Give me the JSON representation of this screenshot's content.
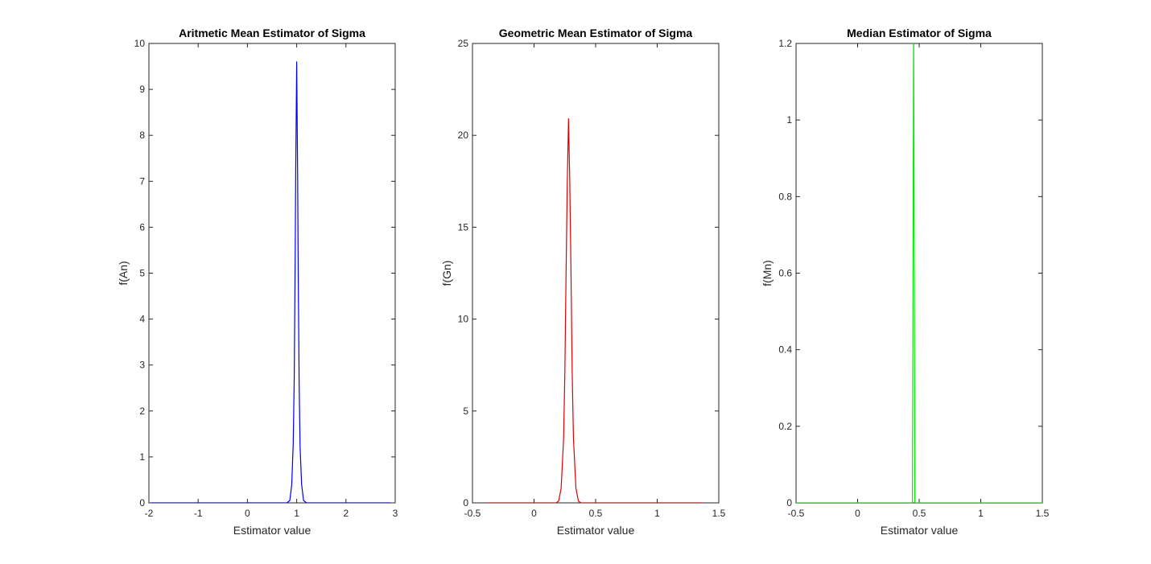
{
  "chart_data": [
    {
      "type": "line",
      "title": "Aritmetic Mean Estimator of Sigma",
      "xlabel": "Estimator value",
      "ylabel": "f(An)",
      "xlim": [
        -2,
        3
      ],
      "ylim": [
        0,
        10
      ],
      "xticks": [
        "-2",
        "-1",
        "0",
        "1",
        "2",
        "3"
      ],
      "yticks": [
        "0",
        "1",
        "2",
        "3",
        "4",
        "5",
        "6",
        "7",
        "8",
        "9",
        "10"
      ],
      "grid": false,
      "color": "#0000ff",
      "series": [
        {
          "x": [
            -1.95,
            0.8,
            0.86,
            0.9,
            0.93,
            0.95,
            0.97,
            0.98,
            1.0,
            1.02,
            1.03,
            1.05,
            1.07,
            1.1,
            1.14,
            1.2,
            2.9
          ],
          "y": [
            0,
            0,
            0.05,
            0.4,
            1.3,
            2.7,
            5.4,
            7.2,
            9.6,
            7.0,
            5.2,
            2.6,
            1.2,
            0.4,
            0.05,
            0,
            0
          ]
        }
      ]
    },
    {
      "type": "line",
      "title": "Geometric Mean Estimator of Sigma",
      "xlabel": "Estimator value",
      "ylabel": "f(Gn)",
      "xlim": [
        -0.5,
        1.5
      ],
      "ylim": [
        0,
        25
      ],
      "xticks": [
        "-0.5",
        "0",
        "0.5",
        "1",
        "1.5"
      ],
      "yticks": [
        "0",
        "5",
        "10",
        "15",
        "20",
        "25"
      ],
      "grid": false,
      "color": "#dd0000",
      "series": [
        {
          "x": [
            -0.38,
            0.18,
            0.2,
            0.22,
            0.24,
            0.25,
            0.26,
            0.27,
            0.28,
            0.29,
            0.3,
            0.31,
            0.32,
            0.34,
            0.36,
            0.38,
            1.37
          ],
          "y": [
            0,
            0,
            0.1,
            0.8,
            3.5,
            7.0,
            12.5,
            17.5,
            20.9,
            17.5,
            12.5,
            7.0,
            3.5,
            0.8,
            0.1,
            0,
            0
          ]
        }
      ]
    },
    {
      "type": "line",
      "title": "Median Estimator of Sigma",
      "xlabel": "Estimator value",
      "ylabel": "f(Mn)",
      "xlim": [
        -0.5,
        1.5
      ],
      "ylim": [
        0,
        1.2
      ],
      "xticks": [
        "-0.5",
        "0",
        "0.5",
        "1",
        "1.5"
      ],
      "yticks": [
        "0",
        "0.2",
        "0.4",
        "0.6",
        "0.8",
        "1",
        "1.2"
      ],
      "grid": false,
      "color": "#00ee00",
      "series": [
        {
          "x": [
            -0.5,
            0.445,
            0.455,
            0.465,
            1.5
          ],
          "y": [
            0,
            0,
            1.25,
            0,
            0
          ]
        }
      ]
    }
  ]
}
